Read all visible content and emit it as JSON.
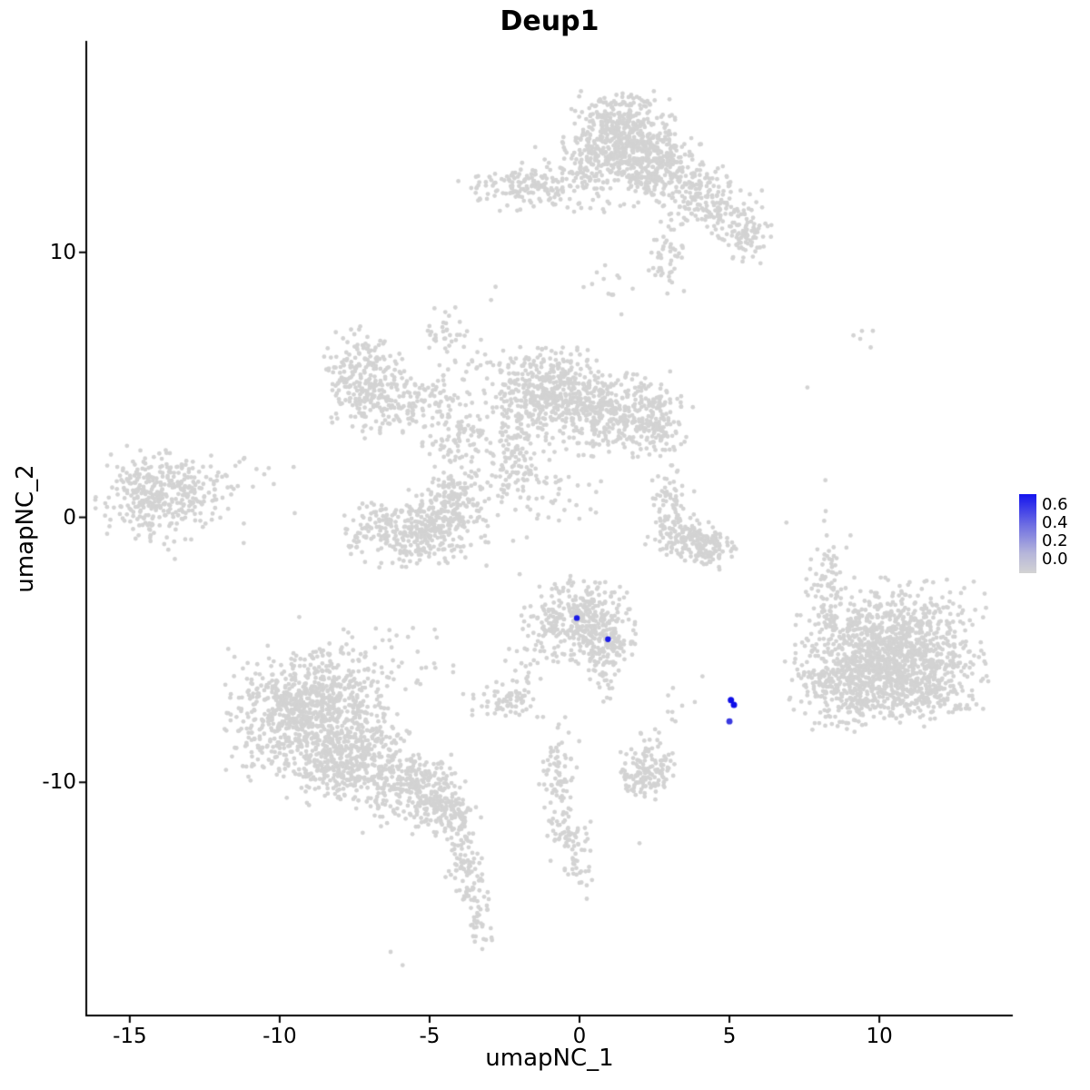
{
  "chart_data": {
    "type": "scatter",
    "title": "Deup1",
    "xlabel": "umapNC_1",
    "ylabel": "umapNC_2",
    "xlim": [
      -16.45,
      14.45
    ],
    "ylim": [
      -18.8,
      17.98
    ],
    "grid": false,
    "x_ticks": [
      {
        "value": -15,
        "label": "-15"
      },
      {
        "value": -10,
        "label": "-10"
      },
      {
        "value": -5,
        "label": "-5"
      },
      {
        "value": 0,
        "label": "0"
      },
      {
        "value": 5,
        "label": "5"
      },
      {
        "value": 10,
        "label": "10"
      }
    ],
    "y_ticks": [
      {
        "value": 10,
        "label": "10"
      },
      {
        "value": 0,
        "label": "0"
      },
      {
        "value": -10,
        "label": "-10"
      }
    ],
    "point_color": "#d3d3d3",
    "point_radius": 2.4,
    "legend": {
      "position": "right",
      "tick_labels": [
        "0.6",
        "0.4",
        "0.2",
        "0.0"
      ],
      "value_range": [
        0.0,
        0.65
      ],
      "gradient_stops": [
        "#1414ee 0%",
        "#7070e2 40%",
        "#b6b6da 75%",
        "#d3d3d3 100%"
      ]
    },
    "clusters": [
      {
        "cx": 1.3,
        "cy": 14.4,
        "sx": 0.85,
        "sy": 0.75,
        "n": 520
      },
      {
        "cx": 2.6,
        "cy": 13.1,
        "sx": 0.75,
        "sy": 0.6,
        "n": 260
      },
      {
        "cx": 4.2,
        "cy": 12.1,
        "sx": 0.7,
        "sy": 0.55,
        "n": 170,
        "rot": -0.5
      },
      {
        "cx": 5.5,
        "cy": 10.7,
        "sx": 0.4,
        "sy": 0.55,
        "n": 90
      },
      {
        "cx": -1.7,
        "cy": 12.5,
        "sx": 1.05,
        "sy": 0.4,
        "n": 160
      },
      {
        "cx": 0.2,
        "cy": 12.9,
        "sx": 0.8,
        "sy": 0.7,
        "n": 90
      },
      {
        "cx": 3.0,
        "cy": 10.2,
        "sx": 0.35,
        "sy": 0.4,
        "n": 35
      },
      {
        "cx": 2.9,
        "cy": 9.0,
        "sx": 0.3,
        "sy": 0.35,
        "n": 14
      },
      {
        "cx": 1.0,
        "cy": 8.6,
        "sx": 0.5,
        "sy": 0.5,
        "n": 12
      },
      {
        "cx": -7.2,
        "cy": 5.2,
        "sx": 0.6,
        "sy": 0.85,
        "n": 240
      },
      {
        "cx": -5.6,
        "cy": 4.4,
        "sx": 0.9,
        "sy": 0.5,
        "n": 140,
        "rot": 0.3
      },
      {
        "cx": -4.1,
        "cy": 3.0,
        "sx": 0.6,
        "sy": 0.6,
        "n": 90,
        "rot": 0.7
      },
      {
        "cx": -1.1,
        "cy": 4.7,
        "sx": 0.95,
        "sy": 0.85,
        "n": 480
      },
      {
        "cx": 1.2,
        "cy": 3.9,
        "sx": 0.85,
        "sy": 0.7,
        "n": 320
      },
      {
        "cx": 2.7,
        "cy": 3.6,
        "sx": 0.45,
        "sy": 0.6,
        "n": 110
      },
      {
        "cx": -5.5,
        "cy": -0.5,
        "sx": 1.05,
        "sy": 0.65,
        "n": 380
      },
      {
        "cx": -4.1,
        "cy": 0.7,
        "sx": 0.55,
        "sy": 0.55,
        "n": 130,
        "rot": 0.6
      },
      {
        "cx": -2.6,
        "cy": 1.7,
        "sx": 0.7,
        "sy": 0.55,
        "n": 70,
        "rot": 0.5
      },
      {
        "cx": -2.1,
        "cy": 2.6,
        "sx": 0.3,
        "sy": 0.8,
        "n": 60
      },
      {
        "cx": -0.9,
        "cy": 1.2,
        "sx": 0.8,
        "sy": 0.9,
        "n": 45
      },
      {
        "cx": -4.6,
        "cy": 7.1,
        "sx": 0.4,
        "sy": 0.45,
        "n": 30
      },
      {
        "cx": -3.6,
        "cy": 5.9,
        "sx": 0.5,
        "sy": 0.5,
        "n": 20
      },
      {
        "cx": -13.9,
        "cy": 0.9,
        "sx": 1.0,
        "sy": 0.75,
        "n": 320
      },
      {
        "cx": -13.3,
        "cy": 0.5,
        "sx": 1.7,
        "sy": 1.2,
        "n": 60
      },
      {
        "cx": -11.6,
        "cy": 1.5,
        "sx": 0.6,
        "sy": 0.8,
        "n": 10
      },
      {
        "cx": 3.0,
        "cy": 0.3,
        "sx": 0.35,
        "sy": 0.7,
        "n": 70
      },
      {
        "cx": 3.7,
        "cy": -0.9,
        "sx": 0.6,
        "sy": 0.45,
        "n": 150,
        "rot": -0.4
      },
      {
        "cx": 4.5,
        "cy": -1.2,
        "sx": 0.35,
        "sy": 0.3,
        "n": 60
      },
      {
        "cx": 0.0,
        "cy": -3.9,
        "sx": 0.85,
        "sy": 0.75,
        "n": 380
      },
      {
        "cx": 0.9,
        "cy": -5.0,
        "sx": 0.45,
        "sy": 0.55,
        "n": 90
      },
      {
        "cx": 0.8,
        "cy": -6.3,
        "sx": 0.3,
        "sy": 0.4,
        "n": 14
      },
      {
        "cx": 10.4,
        "cy": -5.0,
        "sx": 1.35,
        "sy": 1.15,
        "n": 1150
      },
      {
        "cx": 9.0,
        "cy": -6.4,
        "sx": 0.9,
        "sy": 0.75,
        "n": 280
      },
      {
        "cx": 11.6,
        "cy": -6.6,
        "sx": 0.8,
        "sy": 0.6,
        "n": 120
      },
      {
        "cx": 8.2,
        "cy": -3.0,
        "sx": 0.35,
        "sy": 1.0,
        "n": 70
      },
      {
        "cx": 8.5,
        "cy": -0.8,
        "sx": 0.3,
        "sy": 0.8,
        "n": 10
      },
      {
        "cx": 9.3,
        "cy": 6.8,
        "sx": 0.3,
        "sy": 0.4,
        "n": 5
      },
      {
        "cx": -8.9,
        "cy": -7.3,
        "sx": 1.25,
        "sy": 1.05,
        "n": 820
      },
      {
        "cx": -7.7,
        "cy": -9.2,
        "sx": 1.0,
        "sy": 0.7,
        "n": 380,
        "rot": 0.3
      },
      {
        "cx": -5.8,
        "cy": -10.2,
        "sx": 0.85,
        "sy": 0.5,
        "n": 220,
        "rot": 0.35
      },
      {
        "cx": -4.6,
        "cy": -11.1,
        "sx": 0.5,
        "sy": 0.5,
        "n": 160
      },
      {
        "cx": -3.9,
        "cy": -12.7,
        "sx": 0.3,
        "sy": 0.65,
        "n": 60
      },
      {
        "cx": -3.5,
        "cy": -14.4,
        "sx": 0.28,
        "sy": 0.75,
        "n": 55
      },
      {
        "cx": -3.2,
        "cy": -15.9,
        "sx": 0.2,
        "sy": 0.3,
        "n": 10
      },
      {
        "cx": -7.0,
        "cy": -5.4,
        "sx": 1.3,
        "sy": 0.8,
        "n": 70
      },
      {
        "cx": -10.6,
        "cy": -8.6,
        "sx": 0.5,
        "sy": 0.6,
        "n": 40
      },
      {
        "cx": -2.4,
        "cy": -6.9,
        "sx": 0.55,
        "sy": 0.3,
        "n": 70
      },
      {
        "cx": -1.8,
        "cy": -5.6,
        "sx": 0.4,
        "sy": 0.5,
        "n": 18
      },
      {
        "cx": 2.2,
        "cy": -9.6,
        "sx": 0.5,
        "sy": 0.45,
        "n": 130
      },
      {
        "cx": 2.4,
        "cy": -8.4,
        "sx": 0.3,
        "sy": 0.4,
        "n": 10
      },
      {
        "cx": 3.2,
        "cy": -7.1,
        "sx": 0.3,
        "sy": 0.5,
        "n": 8
      },
      {
        "cx": -0.7,
        "cy": -9.9,
        "sx": 0.3,
        "sy": 1.0,
        "n": 85
      },
      {
        "cx": -0.3,
        "cy": -12.3,
        "sx": 0.3,
        "sy": 0.7,
        "n": 55
      },
      {
        "cx": 0.1,
        "cy": -13.6,
        "sx": 0.25,
        "sy": 0.4,
        "n": 12
      }
    ],
    "singles": [
      [
        -2.8,
        8.7
      ],
      [
        -2.95,
        8.2
      ],
      [
        7.6,
        4.9
      ],
      [
        8.2,
        1.4
      ],
      [
        -6.3,
        -16.4
      ],
      [
        -5.9,
        -16.9
      ],
      [
        2.0,
        -12.3
      ],
      [
        -11.2,
        2.2
      ],
      [
        6.9,
        -0.2
      ],
      [
        4.1,
        -6.0
      ]
    ],
    "highlighted_points": [
      {
        "x": -0.09,
        "y": -3.8,
        "value": 0.6,
        "r": 3.2,
        "color": "#1a1ae6"
      },
      {
        "x": 0.95,
        "y": -4.6,
        "value": 0.6,
        "r": 3.2,
        "color": "#1a1ae6"
      },
      {
        "x": 5.05,
        "y": -6.9,
        "value": 0.65,
        "r": 3.5,
        "color": "#0f0fe8"
      },
      {
        "x": 5.15,
        "y": -7.08,
        "value": 0.65,
        "r": 3.5,
        "color": "#0f0fe8"
      },
      {
        "x": 5.0,
        "y": -7.7,
        "value": 0.5,
        "r": 3.4,
        "color": "#3a3ae0"
      }
    ]
  }
}
